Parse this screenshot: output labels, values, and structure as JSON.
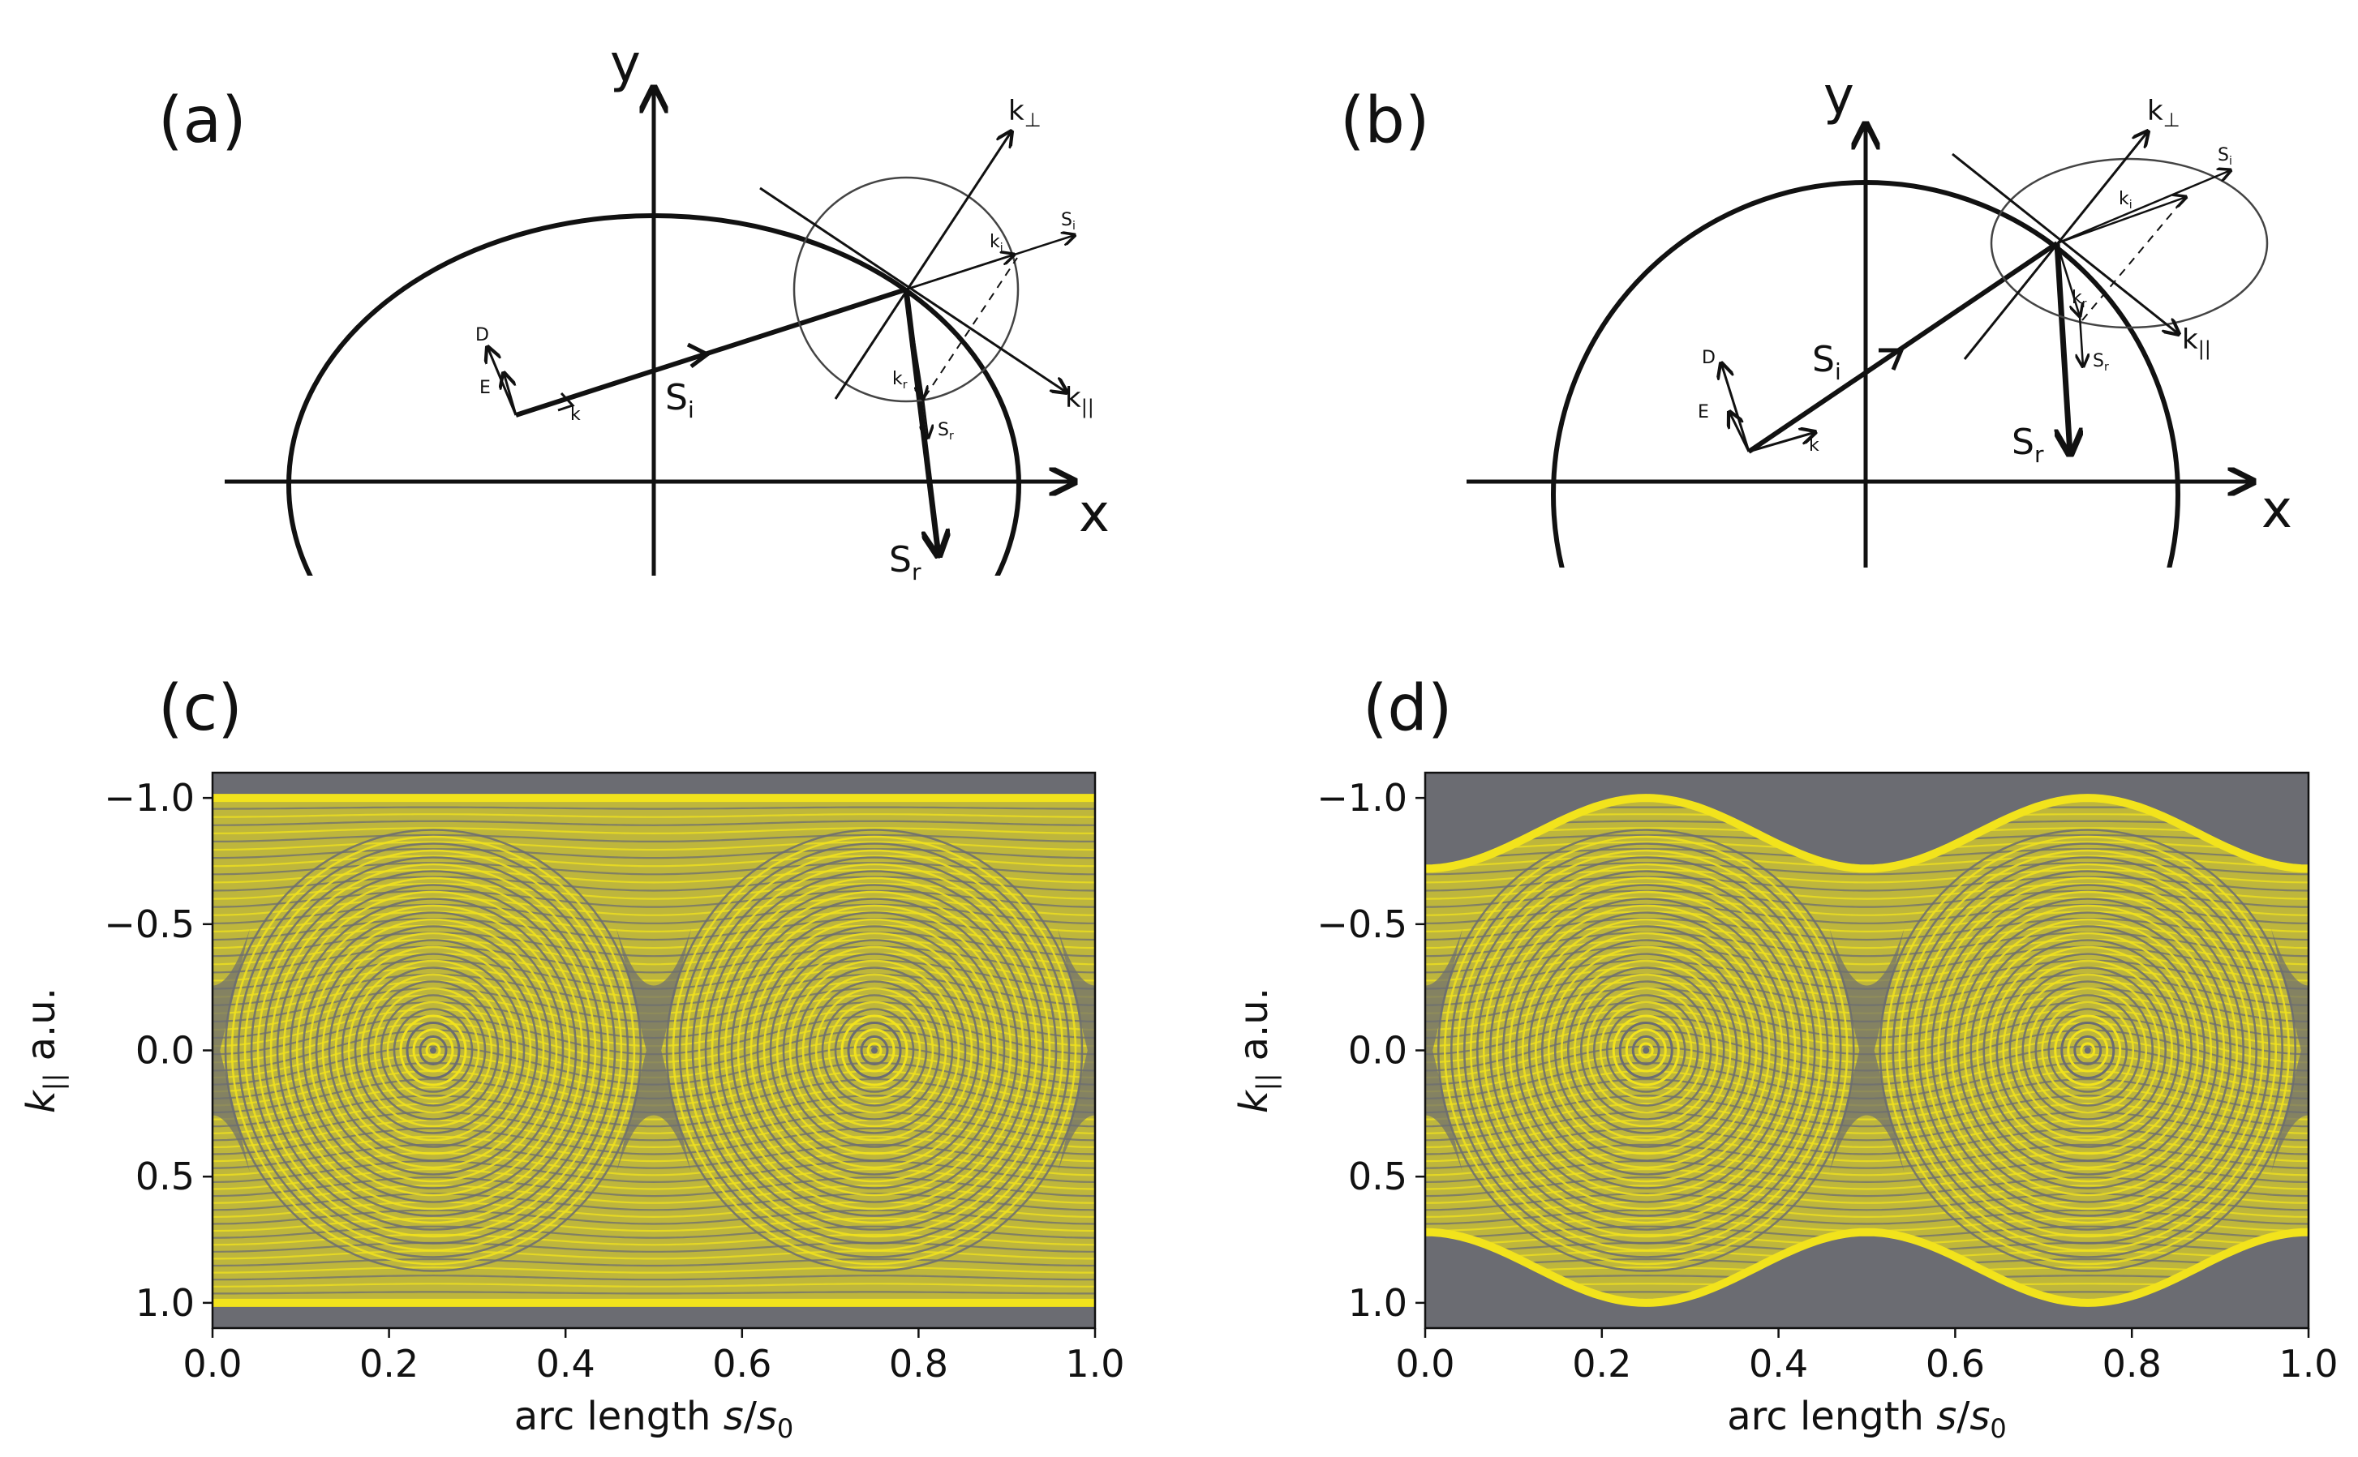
{
  "panels": {
    "a": {
      "label": "(a)",
      "axis_x": "x",
      "axis_y": "y",
      "vectors": {
        "s_i": "S",
        "s_i_sub": "i",
        "s_r": "S",
        "s_r_sub": "r",
        "k_perp": "k",
        "k_perp_sub": "⊥",
        "k_par": "k",
        "k_par_sub": "||",
        "k_small": "k",
        "d": "D",
        "e": "E",
        "small_si": "S",
        "small_si_sub": "i",
        "small_ki": "k",
        "small_ki_sub": "i",
        "small_kr": "k",
        "small_kr_sub": "r",
        "small_sr": "S",
        "small_sr_sub": "r"
      }
    },
    "b": {
      "label": "(b)",
      "axis_x": "x",
      "axis_y": "y",
      "vectors": {
        "s_i": "S",
        "s_i_sub": "i",
        "s_r": "S",
        "s_r_sub": "r",
        "k_perp": "k",
        "k_perp_sub": "⊥",
        "k_par": "k",
        "k_par_sub": "||",
        "k_small": "k",
        "d": "D",
        "e": "E",
        "small_si": "S",
        "small_si_sub": "i",
        "small_ki": "k",
        "small_ki_sub": "i",
        "small_kr": "k",
        "small_kr_sub": "r",
        "small_sr": "S",
        "small_sr_sub": "r"
      }
    },
    "c": {
      "label": "(c)"
    },
    "d": {
      "label": "(d)"
    }
  },
  "colors": {
    "background": "#6b6c72",
    "orbit": "#f2e31c",
    "ink": "#111111"
  },
  "chart_data": [
    {
      "panel": "c",
      "type": "scatter",
      "title": "",
      "xlabel": "arc length s/s0",
      "xlabel_prefix": "arc length ",
      "xlabel_var": "s",
      "xlabel_slash": "/",
      "xlabel_base": "s",
      "xlabel_sub": "0",
      "ylabel": "k|| a.u.",
      "ylabel_var": "k",
      "ylabel_sub": "||",
      "ylabel_units": " a.u.",
      "xlim": [
        0.0,
        1.0
      ],
      "ylim": [
        -1.1,
        1.1
      ],
      "y_inverted": true,
      "xticks": [
        "0.0",
        "0.2",
        "0.4",
        "0.6",
        "0.8",
        "1.0"
      ],
      "xtick_values": [
        0.0,
        0.2,
        0.4,
        0.6,
        0.8,
        1.0
      ],
      "yticks": [
        "−1.0",
        "−0.5",
        "0.0",
        "0.5",
        "1.0"
      ],
      "ytick_values": [
        -1.0,
        -0.5,
        0.0,
        0.5,
        1.0
      ],
      "island_centers": [
        [
          0.25,
          0.0
        ],
        [
          0.75,
          0.0
        ]
      ],
      "x_points": [
        [
          0.5,
          0.0
        ],
        [
          0.0,
          0.0
        ],
        [
          1.0,
          0.0
        ]
      ],
      "band_upper": [
        [
          0.0,
          -1.0
        ],
        [
          0.25,
          -1.0
        ],
        [
          0.5,
          -1.0
        ],
        [
          0.75,
          -1.0
        ],
        [
          1.0,
          -1.0
        ]
      ],
      "band_lower": [
        [
          0.0,
          1.0
        ],
        [
          0.25,
          1.0
        ],
        [
          0.5,
          1.0
        ],
        [
          0.75,
          1.0
        ],
        [
          1.0,
          1.0
        ]
      ]
    },
    {
      "panel": "d",
      "type": "scatter",
      "title": "",
      "xlabel": "arc length s/s0",
      "xlabel_prefix": "arc length ",
      "xlabel_var": "s",
      "xlabel_slash": "/",
      "xlabel_base": "s",
      "xlabel_sub": "0",
      "ylabel": "k|| a.u.",
      "ylabel_var": "k",
      "ylabel_sub": "||",
      "ylabel_units": " a.u.",
      "xlim": [
        0.0,
        1.0
      ],
      "ylim": [
        -1.1,
        1.1
      ],
      "y_inverted": true,
      "xticks": [
        "0.0",
        "0.2",
        "0.4",
        "0.6",
        "0.8",
        "1.0"
      ],
      "xtick_values": [
        0.0,
        0.2,
        0.4,
        0.6,
        0.8,
        1.0
      ],
      "yticks": [
        "−1.0",
        "−0.5",
        "0.0",
        "0.5",
        "1.0"
      ],
      "ytick_values": [
        -1.0,
        -0.5,
        0.0,
        0.5,
        1.0
      ],
      "island_centers": [
        [
          0.25,
          0.0
        ],
        [
          0.75,
          0.0
        ]
      ],
      "x_points": [
        [
          0.5,
          0.0
        ],
        [
          0.0,
          0.0
        ],
        [
          1.0,
          0.0
        ]
      ],
      "band_upper": [
        [
          0.0,
          -0.72
        ],
        [
          0.25,
          -1.0
        ],
        [
          0.5,
          -0.72
        ],
        [
          0.75,
          -1.0
        ],
        [
          1.0,
          -0.72
        ]
      ],
      "band_lower": [
        [
          0.0,
          0.72
        ],
        [
          0.25,
          1.0
        ],
        [
          0.5,
          0.72
        ],
        [
          0.75,
          1.0
        ],
        [
          1.0,
          0.72
        ]
      ]
    }
  ]
}
